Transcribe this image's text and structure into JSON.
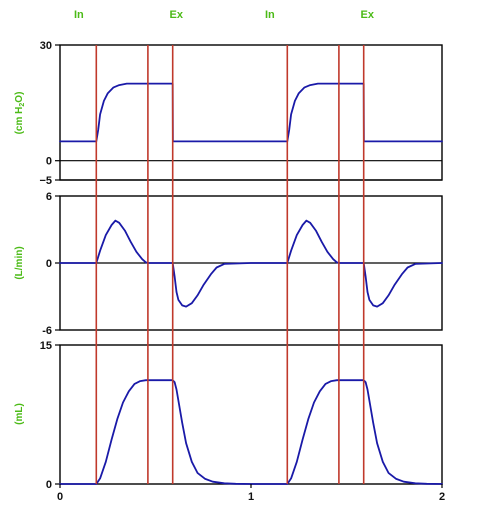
{
  "colors": {
    "waveform": "#1a1aa8",
    "phase_marker": "#c0392b",
    "label_green": "#4cbb17",
    "axes": "#000000"
  },
  "chart_data": {
    "type": "line",
    "phase_labels": [
      {
        "text": "In",
        "x": 0.0
      },
      {
        "text": "Ex",
        "x": 0.5
      },
      {
        "text": "In",
        "x": 1.0
      },
      {
        "text": "Ex",
        "x": 1.5
      }
    ],
    "phase_markers_x": [
      0.19,
      0.46,
      0.59,
      1.19,
      1.46,
      1.59
    ],
    "xlim": [
      0,
      2
    ],
    "x_ticks": [
      "0",
      "1",
      "2"
    ],
    "panels": [
      {
        "ylabel": "(cm H2O)",
        "ylabel_main": "(cm H",
        "ylabel_sub": "2",
        "ylabel_end": "O)",
        "ylim": [
          -5,
          30
        ],
        "y_ticks": [
          "30",
          "0",
          "−5"
        ],
        "y_tick_values": [
          30,
          0,
          -5
        ],
        "zero_line": 0,
        "extra_line": -5,
        "series": [
          {
            "x": [
              0,
              0.19,
              0.2,
              0.21,
              0.23,
              0.25,
              0.28,
              0.31,
              0.35,
              0.46,
              0.59,
              0.591,
              1.0,
              1.19,
              1.2,
              1.21,
              1.23,
              1.25,
              1.28,
              1.31,
              1.35,
              1.46,
              1.59,
              1.591,
              2.0
            ],
            "y": [
              5,
              5,
              8,
              12,
              15.5,
              17.5,
              19,
              19.6,
              20,
              20,
              20,
              5,
              5,
              5,
              8,
              12,
              15.5,
              17.5,
              19,
              19.6,
              20,
              20,
              20,
              5,
              5
            ]
          }
        ]
      },
      {
        "ylabel": "(L/min)",
        "ylim": [
          -6,
          6
        ],
        "y_ticks": [
          "6",
          "0",
          "-6"
        ],
        "y_tick_values": [
          6,
          0,
          -6
        ],
        "zero_line": 0,
        "series": [
          {
            "x": [
              0,
              0.19,
              0.21,
              0.24,
              0.27,
              0.29,
              0.31,
              0.34,
              0.37,
              0.4,
              0.43,
              0.45,
              0.46,
              0.59,
              0.6,
              0.61,
              0.62,
              0.64,
              0.66,
              0.69,
              0.72,
              0.75,
              0.79,
              0.82,
              0.86,
              1.0,
              1.19,
              1.21,
              1.24,
              1.27,
              1.29,
              1.31,
              1.34,
              1.37,
              1.4,
              1.43,
              1.45,
              1.46,
              1.59,
              1.6,
              1.61,
              1.62,
              1.64,
              1.66,
              1.69,
              1.72,
              1.75,
              1.79,
              1.82,
              1.86,
              2.0
            ],
            "y": [
              0,
              0,
              1.1,
              2.5,
              3.4,
              3.8,
              3.6,
              2.9,
              1.9,
              1.0,
              0.35,
              0.05,
              0,
              0,
              -1.2,
              -2.6,
              -3.3,
              -3.8,
              -3.9,
              -3.6,
              -2.9,
              -2.0,
              -1.0,
              -0.4,
              -0.08,
              0,
              0,
              1.1,
              2.5,
              3.4,
              3.8,
              3.6,
              2.9,
              1.9,
              1.0,
              0.35,
              0.05,
              0,
              0,
              -1.2,
              -2.6,
              -3.3,
              -3.8,
              -3.9,
              -3.6,
              -2.9,
              -2.0,
              -1.0,
              -0.4,
              -0.08,
              0
            ]
          }
        ]
      },
      {
        "ylabel": "(mL)",
        "ylim": [
          0,
          15
        ],
        "y_ticks": [
          "15",
          "0"
        ],
        "y_tick_values": [
          15,
          0
        ],
        "zero_line": 0,
        "series": [
          {
            "x": [
              0,
              0.19,
              0.21,
              0.24,
              0.27,
              0.3,
              0.33,
              0.36,
              0.39,
              0.42,
              0.45,
              0.46,
              0.59,
              0.6,
              0.61,
              0.62,
              0.64,
              0.66,
              0.69,
              0.72,
              0.76,
              0.8,
              0.86,
              0.92,
              1.0,
              1.19,
              1.21,
              1.24,
              1.27,
              1.3,
              1.33,
              1.36,
              1.39,
              1.42,
              1.45,
              1.46,
              1.59,
              1.6,
              1.61,
              1.62,
              1.64,
              1.66,
              1.69,
              1.72,
              1.76,
              1.8,
              1.86,
              1.92,
              2.0
            ],
            "y": [
              0,
              0,
              0.6,
              2.4,
              4.8,
              7.0,
              8.8,
              10.0,
              10.8,
              11.1,
              11.2,
              11.2,
              11.2,
              11.0,
              10.2,
              9.0,
              6.6,
              4.4,
              2.4,
              1.2,
              0.55,
              0.25,
              0.08,
              0.02,
              0,
              0,
              0.6,
              2.4,
              4.8,
              7.0,
              8.8,
              10.0,
              10.8,
              11.1,
              11.2,
              11.2,
              11.2,
              11.0,
              10.2,
              9.0,
              6.6,
              4.4,
              2.4,
              1.2,
              0.55,
              0.25,
              0.08,
              0.02,
              0
            ]
          }
        ]
      }
    ]
  }
}
